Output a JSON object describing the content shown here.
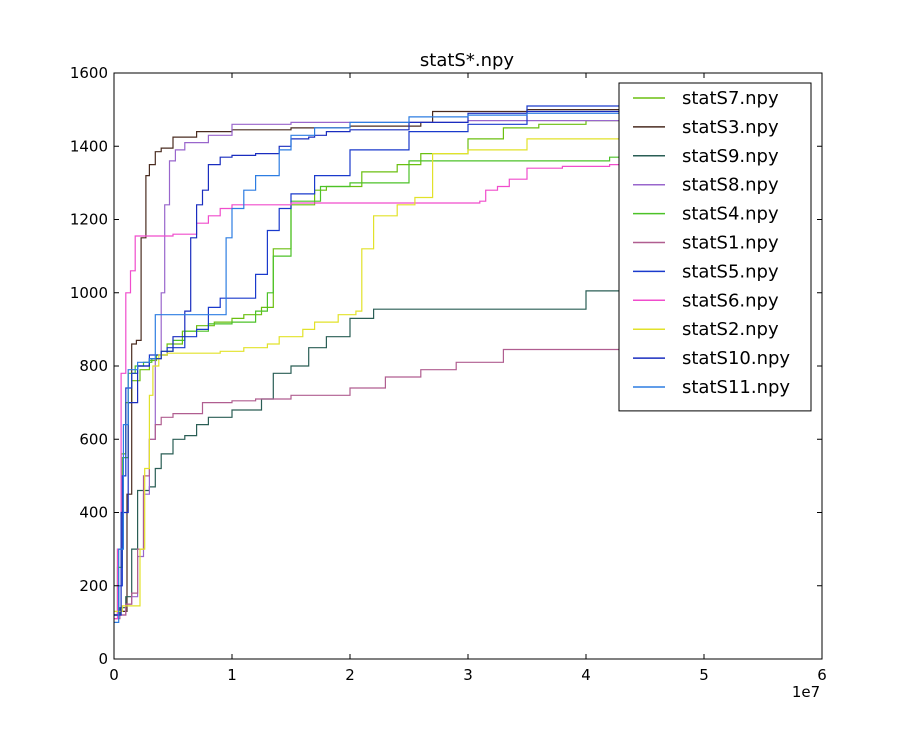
{
  "chart_data": {
    "type": "line",
    "title": "statS*.npy",
    "xlabel": "",
    "ylabel": "",
    "x_offset_text": "1e7",
    "xlim": [
      0,
      60000000
    ],
    "ylim": [
      0,
      1600
    ],
    "x_ticks": [
      0,
      10000000,
      20000000,
      30000000,
      40000000,
      50000000,
      60000000
    ],
    "x_tick_labels": [
      "0",
      "1",
      "2",
      "3",
      "4",
      "5",
      "6"
    ],
    "y_ticks": [
      0,
      200,
      400,
      600,
      800,
      1000,
      1200,
      1400,
      1600
    ],
    "y_tick_labels": [
      "0",
      "200",
      "400",
      "600",
      "800",
      "1000",
      "1200",
      "1400",
      "1600"
    ],
    "grid": false,
    "legend_position": "top-right",
    "series": [
      {
        "name": "statS7.npy",
        "color": "#6bbf10",
        "x": [
          0,
          300000,
          600000,
          1000000,
          1500000,
          2200000,
          3000000,
          3600000,
          4500000,
          5800000,
          7000000,
          8500000,
          10000000,
          11000000,
          12500000,
          13500000,
          15000000,
          17000000,
          18000000,
          21000000,
          24000000,
          26000000,
          30000000,
          33000000,
          36000000,
          40000000,
          43300000
        ],
        "y": [
          120,
          300,
          560,
          700,
          760,
          790,
          815,
          830,
          860,
          895,
          910,
          920,
          930,
          940,
          960,
          1120,
          1240,
          1280,
          1290,
          1330,
          1350,
          1380,
          1420,
          1450,
          1460,
          1470,
          1475
        ]
      },
      {
        "name": "statS3.npy",
        "color": "#4a2c20",
        "x": [
          0,
          500000,
          1100000,
          1500000,
          1900000,
          2300000,
          2700000,
          3000000,
          3500000,
          4000000,
          5000000,
          7000000,
          10000000,
          15000000,
          20000000,
          26000000,
          27000000,
          35000000,
          43300000
        ],
        "y": [
          120,
          130,
          450,
          860,
          870,
          1150,
          1320,
          1350,
          1385,
          1395,
          1425,
          1440,
          1445,
          1450,
          1455,
          1465,
          1495,
          1500,
          1500
        ]
      },
      {
        "name": "statS9.npy",
        "color": "#2a5e55",
        "x": [
          0,
          500000,
          1000000,
          1500000,
          2000000,
          2500000,
          3000000,
          3500000,
          4000000,
          5000000,
          6000000,
          7000000,
          8000000,
          10000000,
          12500000,
          13500000,
          15000000,
          16500000,
          18000000,
          20000000,
          22000000,
          26000000,
          30000000,
          40000000,
          43300000
        ],
        "y": [
          120,
          140,
          170,
          300,
          460,
          460,
          470,
          520,
          560,
          600,
          610,
          640,
          660,
          680,
          710,
          780,
          800,
          850,
          880,
          930,
          955,
          955,
          955,
          1005,
          1005
        ]
      },
      {
        "name": "statS8.npy",
        "color": "#9966cc",
        "x": [
          0,
          1000000,
          1500000,
          2000000,
          2500000,
          3000000,
          3500000,
          4000000,
          4300000,
          4700000,
          5200000,
          6000000,
          8000000,
          10000000,
          15000000,
          20000000,
          30000000,
          43300000
        ],
        "y": [
          120,
          150,
          170,
          280,
          450,
          600,
          820,
          1000,
          1240,
          1360,
          1390,
          1410,
          1430,
          1460,
          1465,
          1465,
          1470,
          1470
        ]
      },
      {
        "name": "statS4.npy",
        "color": "#4cc228",
        "x": [
          0,
          300000,
          700000,
          1200000,
          1800000,
          2500000,
          3200000,
          4000000,
          5000000,
          6000000,
          8000000,
          10000000,
          12000000,
          13000000,
          13500000,
          15000000,
          17500000,
          20000000,
          25000000,
          30000000,
          35000000,
          40000000,
          42000000,
          43300000
        ],
        "y": [
          120,
          250,
          550,
          780,
          800,
          810,
          820,
          840,
          870,
          895,
          915,
          920,
          950,
          1000,
          1100,
          1250,
          1290,
          1300,
          1360,
          1360,
          1360,
          1360,
          1370,
          1390
        ]
      },
      {
        "name": "statS1.npy",
        "color": "#b05e90",
        "x": [
          0,
          500000,
          1000000,
          1500000,
          2000000,
          2500000,
          3000000,
          3500000,
          4000000,
          5000000,
          7500000,
          10000000,
          12000000,
          15000000,
          20000000,
          23000000,
          26000000,
          29000000,
          33000000,
          36000000,
          43300000
        ],
        "y": [
          110,
          120,
          150,
          180,
          300,
          500,
          600,
          640,
          660,
          670,
          700,
          705,
          710,
          720,
          740,
          770,
          790,
          810,
          845,
          845,
          845
        ]
      },
      {
        "name": "statS5.npy",
        "color": "#1a3acc",
        "x": [
          0,
          400000,
          700000,
          1000000,
          1500000,
          2000000,
          3000000,
          4500000,
          6000000,
          7000000,
          8000000,
          9000000,
          10000000,
          11500000,
          12000000,
          13000000,
          14000000,
          15000000,
          17000000,
          20000000,
          25000000,
          30000000,
          35000000,
          43300000
        ],
        "y": [
          120,
          200,
          500,
          740,
          780,
          800,
          830,
          850,
          880,
          900,
          960,
          985,
          985,
          985,
          1050,
          1170,
          1230,
          1270,
          1320,
          1390,
          1440,
          1460,
          1510,
          1510
        ]
      },
      {
        "name": "statS6.npy",
        "color": "#f04ccc",
        "x": [
          0,
          300000,
          600000,
          1000000,
          1400000,
          1800000,
          3000000,
          5000000,
          7000000,
          8000000,
          9000000,
          10000000,
          12000000,
          15000000,
          20000000,
          25000000,
          31000000,
          31500000,
          32500000,
          33500000,
          35000000,
          38000000,
          42000000,
          43300000
        ],
        "y": [
          110,
          300,
          780,
          1000,
          1060,
          1155,
          1155,
          1160,
          1190,
          1210,
          1230,
          1240,
          1240,
          1245,
          1245,
          1245,
          1250,
          1280,
          1290,
          1310,
          1340,
          1345,
          1350,
          1360
        ]
      },
      {
        "name": "statS2.npy",
        "color": "#e2e22a",
        "x": [
          0,
          700000,
          1200000,
          1800000,
          2200000,
          2600000,
          3000000,
          3300000,
          3800000,
          4500000,
          6000000,
          9000000,
          11000000,
          13000000,
          14000000,
          16000000,
          17000000,
          19000000,
          20500000,
          21000000,
          22000000,
          24000000,
          25500000,
          27000000,
          30000000,
          35000000,
          43300000
        ],
        "y": [
          130,
          145,
          145,
          145,
          300,
          520,
          720,
          800,
          830,
          835,
          835,
          840,
          850,
          860,
          880,
          900,
          920,
          940,
          950,
          1120,
          1210,
          1240,
          1260,
          1380,
          1390,
          1420,
          1430
        ]
      },
      {
        "name": "statS10.npy",
        "color": "#1a2dbf",
        "x": [
          0,
          600000,
          1200000,
          2000000,
          3000000,
          4000000,
          5000000,
          6000000,
          6500000,
          7000000,
          7500000,
          8000000,
          9000000,
          10000000,
          12000000,
          14000000,
          15000000,
          16500000,
          17000000,
          18000000,
          20000000,
          25000000,
          30000000,
          35000000,
          43300000
        ],
        "y": [
          120,
          400,
          700,
          800,
          820,
          840,
          880,
          950,
          1150,
          1240,
          1280,
          1350,
          1370,
          1375,
          1380,
          1400,
          1420,
          1425,
          1430,
          1440,
          1445,
          1465,
          1490,
          1495,
          1495
        ]
      },
      {
        "name": "statS11.npy",
        "color": "#2d7de2",
        "x": [
          0,
          400000,
          800000,
          1200000,
          2000000,
          3000000,
          3500000,
          5000000,
          7000000,
          9000000,
          9500000,
          10000000,
          11000000,
          12000000,
          14000000,
          15000000,
          17000000,
          20000000,
          25000000,
          30000000,
          35000000,
          43300000
        ],
        "y": [
          100,
          300,
          640,
          790,
          810,
          820,
          940,
          940,
          940,
          940,
          1150,
          1230,
          1280,
          1320,
          1390,
          1430,
          1450,
          1465,
          1480,
          1485,
          1490,
          1490
        ]
      }
    ]
  }
}
